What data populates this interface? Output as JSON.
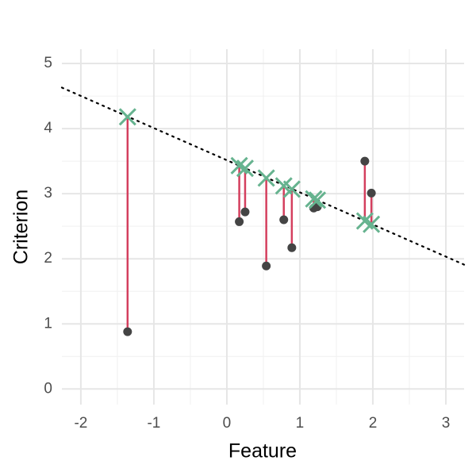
{
  "chart_data": {
    "type": "scatter",
    "x_label": "Feature",
    "y_label": "Criterion",
    "x": [
      -1.36,
      0.17,
      0.25,
      0.54,
      0.78,
      0.89,
      1.19,
      1.24,
      1.89,
      1.98
    ],
    "y": [
      0.88,
      2.57,
      2.72,
      1.89,
      2.6,
      2.17,
      2.78,
      2.8,
      3.5,
      3.01
    ],
    "fitted": [
      4.18,
      3.43,
      3.39,
      3.24,
      3.12,
      3.07,
      2.92,
      2.9,
      2.58,
      2.53
    ],
    "trend": {
      "x": [
        -2.26,
        3.25
      ],
      "y": [
        4.63,
        1.91
      ]
    },
    "point_color": "#444444",
    "residual_color": "#d43f5e",
    "fitted_color": "#66b38f",
    "trend_color": "#000000",
    "xlim": [
      -2.26,
      3.25
    ],
    "ylim": [
      -0.24,
      5.22
    ],
    "xticks": [
      -2,
      -1,
      0,
      1,
      2,
      3
    ],
    "yticks": [
      0,
      1,
      2,
      3,
      4,
      5
    ],
    "grid": true,
    "minor_grid": true
  }
}
